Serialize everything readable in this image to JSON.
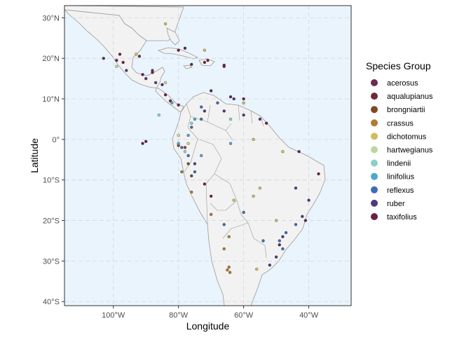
{
  "chart_data": {
    "type": "scatter",
    "xlabel": "Longitude",
    "ylabel": "Latitude",
    "xlim": [
      -115,
      -27
    ],
    "ylim": [
      -41,
      33
    ],
    "x_ticks": [
      {
        "value": -100,
        "label": "100°W"
      },
      {
        "value": -80,
        "label": "80°W"
      },
      {
        "value": -60,
        "label": "60°W"
      },
      {
        "value": -40,
        "label": "40°W"
      }
    ],
    "y_ticks": [
      {
        "value": 30,
        "label": "30°N"
      },
      {
        "value": 20,
        "label": "20°N"
      },
      {
        "value": 10,
        "label": "10°N"
      },
      {
        "value": 0,
        "label": "0°"
      },
      {
        "value": -10,
        "label": "10°S"
      },
      {
        "value": -20,
        "label": "20°S"
      },
      {
        "value": -30,
        "label": "30°S"
      },
      {
        "value": -40,
        "label": "40°S"
      }
    ],
    "grid": true,
    "legend_position": "right",
    "legend_title": "Species Group",
    "colors": {
      "ocean": "#eaf4fd",
      "land": "#f2f2f2",
      "border": "#999999",
      "grid": "#cfd8df"
    },
    "series": [
      {
        "name": "acerosus",
        "color": "#6b2b52",
        "points": [
          [
            -88,
            17
          ],
          [
            -92,
            20.5
          ],
          [
            -103,
            20
          ],
          [
            -99,
            19.5
          ],
          [
            -85,
            13.5
          ],
          [
            -71,
            19.5
          ]
        ]
      },
      {
        "name": "aqualupianus",
        "color": "#6f2a35",
        "points": [
          [
            -76,
            18.5
          ],
          [
            -72,
            19
          ],
          [
            -66,
            18.3
          ],
          [
            -82.5,
            9.5
          ],
          [
            -80,
            8.5
          ]
        ]
      },
      {
        "name": "brongniartii",
        "color": "#7f4a22",
        "points": [
          [
            -78,
            -2
          ],
          [
            -77,
            -6
          ],
          [
            -76,
            -9
          ],
          [
            -80,
            -1.5
          ]
        ]
      },
      {
        "name": "crassus",
        "color": "#b07b32",
        "points": [
          [
            -64.5,
            -31.5
          ],
          [
            -65,
            -32.2
          ],
          [
            -64.2,
            -32.8
          ],
          [
            -66,
            -27
          ],
          [
            -64.5,
            -24
          ],
          [
            -70,
            -18.5
          ],
          [
            -79,
            -8
          ],
          [
            -76,
            -13
          ]
        ]
      },
      {
        "name": "dichotomus",
        "color": "#cfbc5e",
        "points": [
          [
            -84,
            28.5
          ],
          [
            -57,
            0
          ],
          [
            -48,
            -3
          ],
          [
            -55,
            -12
          ],
          [
            -57,
            -14
          ],
          [
            -50,
            -20
          ],
          [
            -56,
            -32
          ],
          [
            -63,
            -15
          ],
          [
            -93,
            21
          ],
          [
            -60,
            9
          ],
          [
            -72,
            22
          ]
        ]
      },
      {
        "name": "hartwegianus",
        "color": "#bcd79c",
        "points": [
          [
            -99,
            18
          ],
          [
            -84,
            14
          ],
          [
            -80,
            1
          ],
          [
            -77,
            -1
          ]
        ]
      },
      {
        "name": "lindenii",
        "color": "#8ecfc4",
        "points": [
          [
            -76,
            4
          ],
          [
            -78,
            -3
          ],
          [
            -64,
            5
          ],
          [
            -86,
            6
          ]
        ]
      },
      {
        "name": "linifolius",
        "color": "#4fa6d1",
        "points": [
          [
            -77,
            1
          ],
          [
            -75,
            5
          ],
          [
            -82,
            9
          ],
          [
            -73,
            -4
          ],
          [
            -80,
            -1
          ],
          [
            -64,
            -1
          ]
        ]
      },
      {
        "name": "reflexus",
        "color": "#3f6db3",
        "points": [
          [
            -76,
            3
          ],
          [
            -73,
            5
          ],
          [
            -79,
            -2
          ],
          [
            -77,
            -4
          ],
          [
            -49,
            -25
          ],
          [
            -48,
            -27
          ],
          [
            -47,
            -23
          ],
          [
            -44,
            -21
          ],
          [
            -66,
            -21
          ],
          [
            -60,
            -18
          ],
          [
            -73,
            8
          ],
          [
            -75,
            -8
          ],
          [
            -68,
            9
          ],
          [
            -54,
            -25
          ]
        ]
      },
      {
        "name": "ruber",
        "color": "#4e3b7e",
        "points": [
          [
            -72,
            7
          ],
          [
            -66,
            7
          ],
          [
            -60,
            6
          ],
          [
            -63,
            10
          ],
          [
            -55,
            5
          ],
          [
            -44,
            -12
          ],
          [
            -40,
            -15
          ],
          [
            -42,
            -19
          ],
          [
            -50,
            -29
          ],
          [
            -52,
            -31
          ],
          [
            -48,
            -24
          ],
          [
            -75,
            -6
          ],
          [
            -87,
            14
          ],
          [
            -90,
            15
          ],
          [
            -96,
            17
          ]
        ]
      },
      {
        "name": "taxifolius",
        "color": "#6a2145",
        "points": [
          [
            -98,
            21
          ],
          [
            -97,
            19
          ],
          [
            -91,
            16
          ],
          [
            -88,
            16.5
          ],
          [
            -84,
            11
          ],
          [
            -70,
            12
          ],
          [
            -64,
            10.5
          ],
          [
            -60,
            10
          ],
          [
            -53,
            4
          ],
          [
            -43,
            -3
          ],
          [
            -41,
            -20
          ],
          [
            -49,
            -26
          ],
          [
            -90,
            -0.5
          ],
          [
            -91,
            -1
          ],
          [
            -72,
            -11
          ],
          [
            -70,
            -14
          ],
          [
            -37,
            -8.5
          ],
          [
            -80,
            22
          ],
          [
            -78,
            22.5
          ],
          [
            -66,
            18
          ]
        ]
      }
    ]
  }
}
